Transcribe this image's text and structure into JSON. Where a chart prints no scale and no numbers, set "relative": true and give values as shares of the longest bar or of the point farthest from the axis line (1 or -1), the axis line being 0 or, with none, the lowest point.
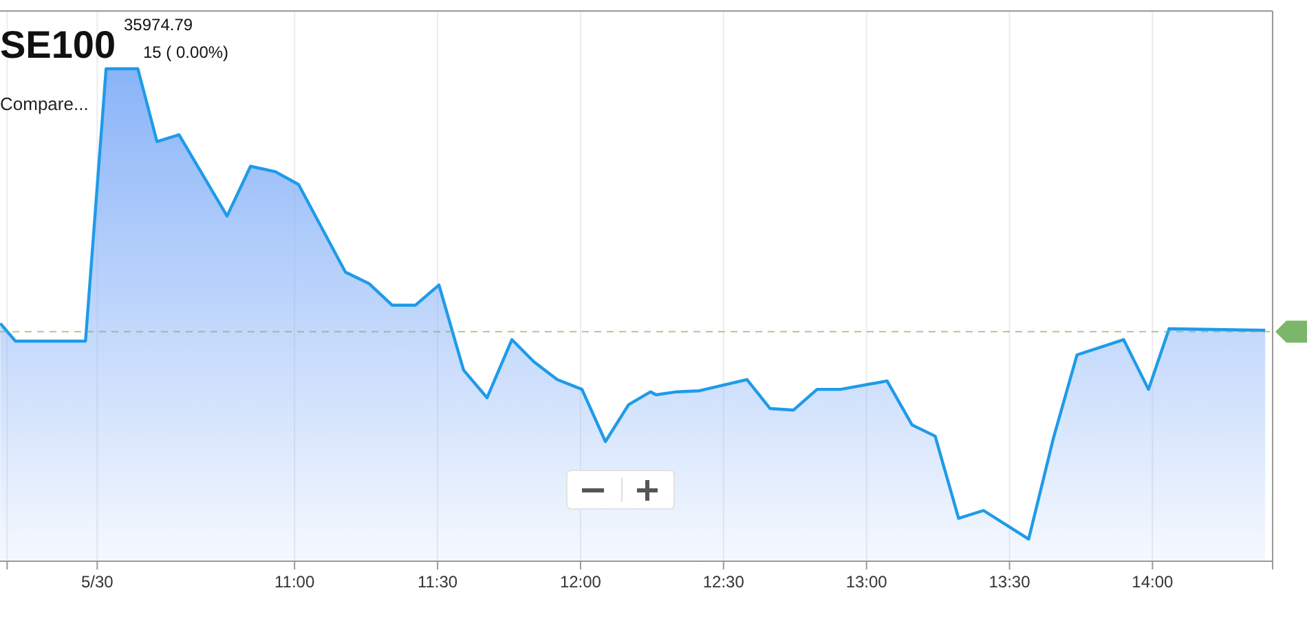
{
  "chart_data": {
    "type": "area",
    "title": "SE100",
    "subtitle": "35974.79",
    "annotations": [
      "15 ( 0.00%)",
      "Compare..."
    ],
    "relative": true,
    "grid": "x",
    "xlim": [
      9.97,
      14.42
    ],
    "xticks": [
      {
        "value": 9.995,
        "label": null
      },
      {
        "value": 10.31,
        "label": "5/30"
      },
      {
        "value": 11,
        "label": "11:00"
      },
      {
        "value": 11.5,
        "label": "11:30"
      },
      {
        "value": 12,
        "label": "12:00"
      },
      {
        "value": 12.5,
        "label": "12:30"
      },
      {
        "value": 13,
        "label": "13:00"
      },
      {
        "value": 13.5,
        "label": "13:30"
      },
      {
        "value": 14,
        "label": "14:00"
      }
    ],
    "ref_lines": [
      {
        "axis": "y",
        "value": 0.466,
        "color": "#7cb66a",
        "line_style": "dashed"
      }
    ],
    "series": [
      {
        "color": "#1e9be9",
        "x": [
          9.971,
          10.024,
          10.269,
          10.341,
          10.452,
          10.519,
          10.596,
          10.764,
          10.846,
          10.933,
          11.014,
          11.178,
          11.26,
          11.341,
          11.423,
          11.505,
          11.591,
          11.673,
          11.76,
          11.837,
          11.918,
          12.005,
          12.087,
          12.168,
          12.245,
          12.264,
          12.337,
          12.413,
          12.582,
          12.663,
          12.745,
          12.827,
          12.909,
          13.072,
          13.159,
          13.24,
          13.322,
          13.409,
          13.567,
          13.654,
          13.736,
          13.899,
          13.986,
          14.058,
          14.394
        ],
        "values": [
          0.483,
          0.447,
          0.447,
          1,
          1,
          0.852,
          0.866,
          0.701,
          0.802,
          0.791,
          0.765,
          0.587,
          0.564,
          0.52,
          0.52,
          0.561,
          0.388,
          0.332,
          0.45,
          0.405,
          0.369,
          0.349,
          0.243,
          0.318,
          0.344,
          0.338,
          0.344,
          0.346,
          0.369,
          0.31,
          0.307,
          0.349,
          0.349,
          0.366,
          0.277,
          0.254,
          0.087,
          0.103,
          0.045,
          0.251,
          0.419,
          0.45,
          0.349,
          0.472,
          0.469
        ]
      }
    ]
  }
}
